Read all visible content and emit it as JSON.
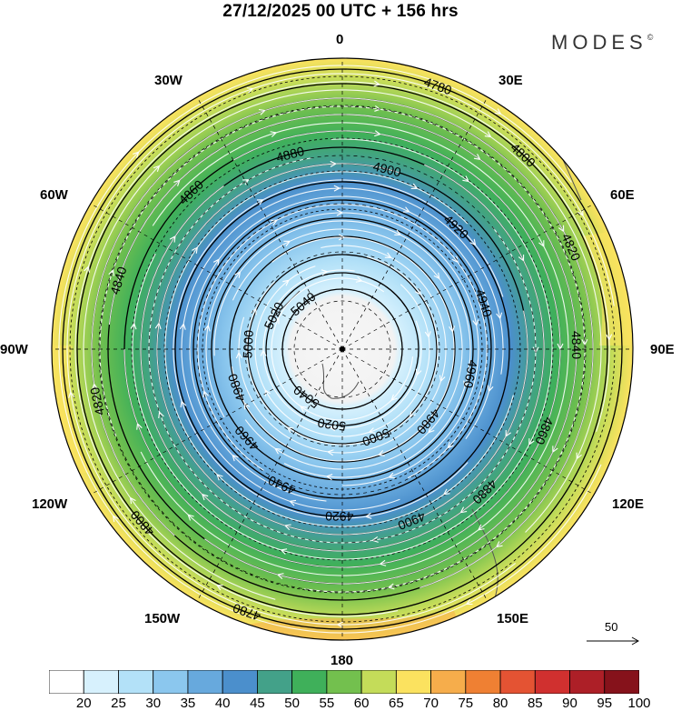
{
  "title": "27/12/2025  00 UTC  + 156 hrs",
  "logo": "MODES",
  "logo_mark": "©",
  "longitude_labels": [
    {
      "id": "0",
      "text": "0"
    },
    {
      "id": "30e",
      "text": "30E"
    },
    {
      "id": "60e",
      "text": "60E"
    },
    {
      "id": "90e",
      "text": "90E"
    },
    {
      "id": "120e",
      "text": "120E"
    },
    {
      "id": "150e",
      "text": "150E"
    },
    {
      "id": "180",
      "text": "180"
    },
    {
      "id": "150w",
      "text": "150W"
    },
    {
      "id": "120w",
      "text": "120W"
    },
    {
      "id": "90w",
      "text": "90W"
    },
    {
      "id": "60w",
      "text": "60W"
    },
    {
      "id": "30w",
      "text": "30W"
    }
  ],
  "reference_vector": "50",
  "contours": {
    "labels": [
      "4780",
      "4800",
      "4820",
      "4840",
      "4860",
      "4880",
      "4900",
      "4920",
      "4940",
      "4960",
      "4980",
      "5000",
      "5020",
      "5040"
    ]
  },
  "colorbar": {
    "ticks": [
      "20",
      "25",
      "30",
      "35",
      "40",
      "45",
      "50",
      "55",
      "60",
      "65",
      "70",
      "75",
      "80",
      "85",
      "90",
      "95",
      "100"
    ],
    "colors": [
      "#ffffff",
      "#d7f1fd",
      "#b3e1f8",
      "#8bc7ee",
      "#67a9dd",
      "#4b8fcc",
      "#43a189",
      "#3fb05a",
      "#73c04e",
      "#c4dc59",
      "#fbe25f",
      "#f6ad4b",
      "#ef8033",
      "#e45333",
      "#d0302f",
      "#ad1f27",
      "#86121b"
    ]
  }
}
